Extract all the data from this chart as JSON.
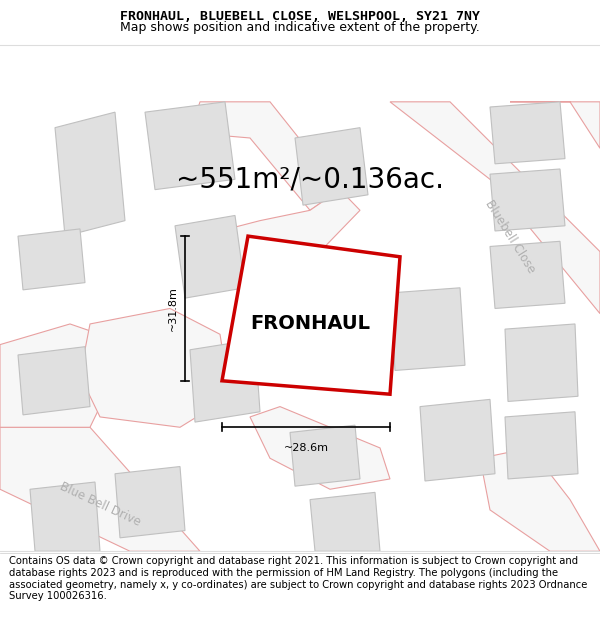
{
  "title_line1": "FRONHAUL, BLUEBELL CLOSE, WELSHPOOL, SY21 7NY",
  "title_line2": "Map shows position and indicative extent of the property.",
  "footer_text": "Contains OS data © Crown copyright and database right 2021. This information is subject to Crown copyright and database rights 2023 and is reproduced with the permission of HM Land Registry. The polygons (including the associated geometry, namely x, y co-ordinates) are subject to Crown copyright and database rights 2023 Ordnance Survey 100026316.",
  "area_label": "~551m²/~0.136ac.",
  "property_label": "FRONHAUL",
  "dim_h": "~28.6m",
  "dim_v": "~31.8m",
  "street_label1": "Bluebell Close",
  "street_label2": "Blue Bell Drive",
  "road_fill": "#f7f7f7",
  "road_outline": "#e8a0a0",
  "building_fill": "#e0e0e0",
  "building_edge": "#c0c0c0",
  "property_edge": "#cc0000",
  "property_fill": "#ffffff",
  "map_bg": "#ffffff",
  "title_fontsize": 9.5,
  "footer_fontsize": 7.2,
  "area_fontsize": 20,
  "property_fontsize": 14,
  "street_fontsize": 8.5,
  "dim_fontsize": 8
}
